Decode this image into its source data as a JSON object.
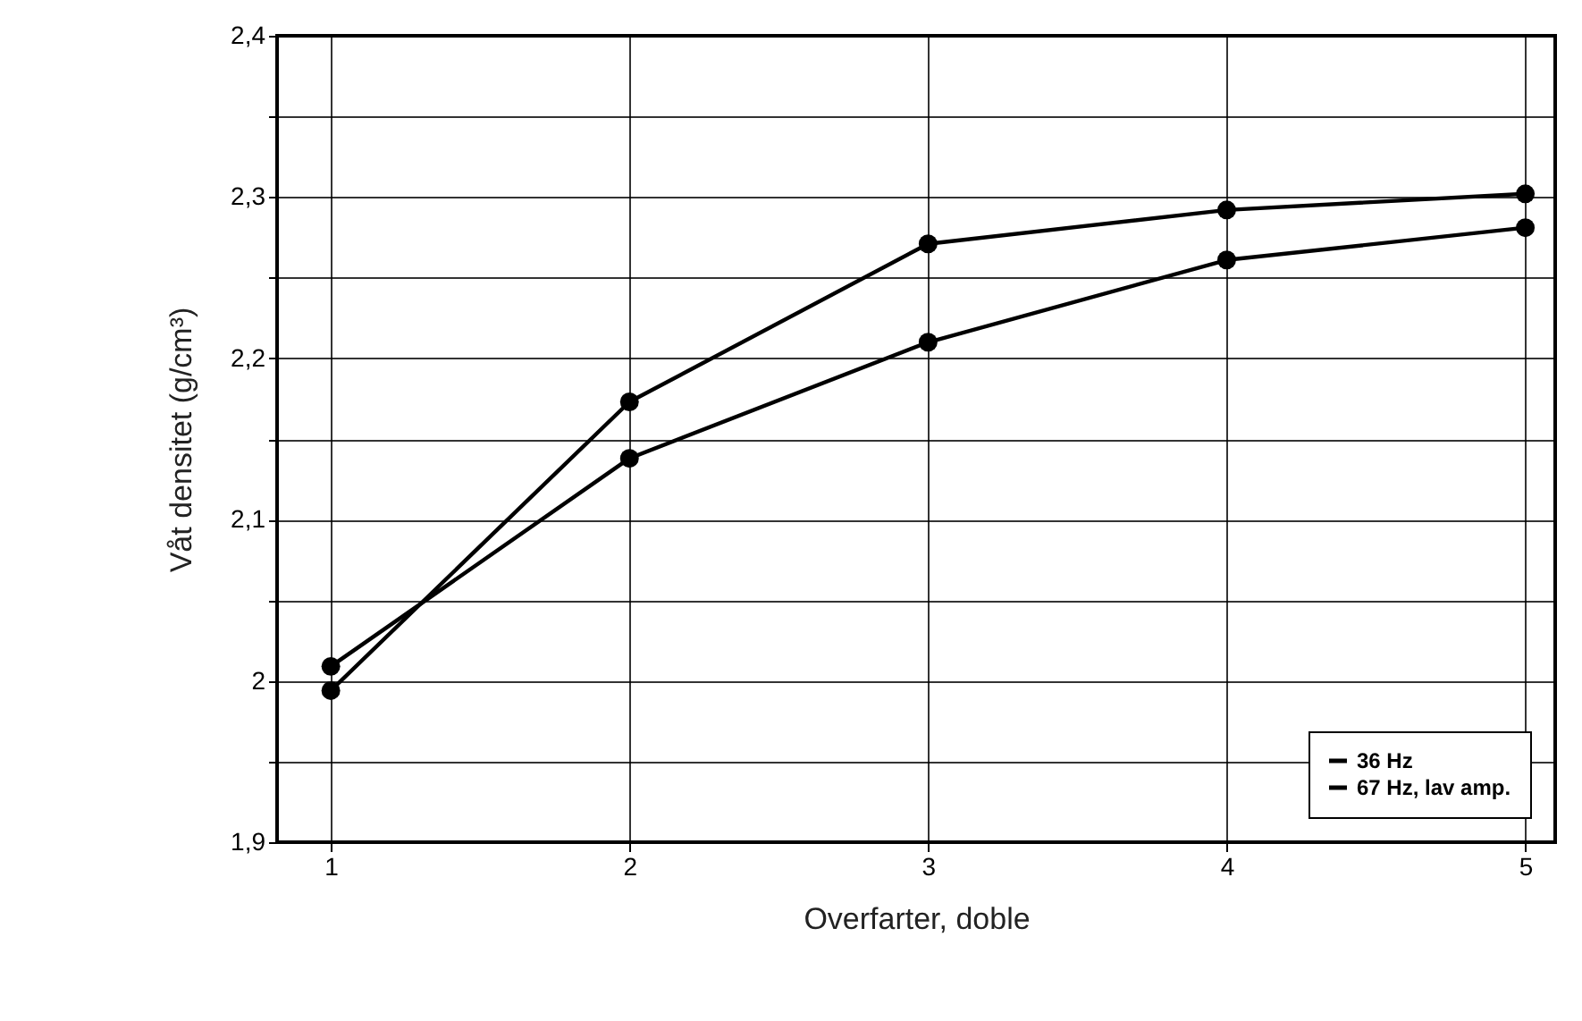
{
  "chart_data": {
    "type": "line",
    "xlabel": "Overfarter, doble",
    "ylabel": "Våt densitet (g/cm³)",
    "x": [
      1,
      2,
      3,
      4,
      5
    ],
    "series": [
      {
        "name": "36 Hz",
        "color": "#000000",
        "values": [
          1.994,
          2.173,
          2.271,
          2.292,
          2.302
        ]
      },
      {
        "name": "67 Hz, lav amp.",
        "color": "#000000",
        "values": [
          2.009,
          2.138,
          2.21,
          2.261,
          2.281
        ]
      }
    ],
    "xlim": [
      0.82,
      5.1
    ],
    "xticks": [
      1,
      2,
      3,
      4,
      5
    ],
    "ylim": [
      1.9,
      2.4
    ],
    "yticks": [
      {
        "value": 1.9,
        "label": "1,9"
      },
      {
        "value": 1.95,
        "label": null
      },
      2,
      {
        "value": 2.05,
        "label": null
      },
      {
        "value": 2.1,
        "label": "2,1"
      },
      {
        "value": 2.15,
        "label": null
      },
      {
        "value": 2.2,
        "label": "2,2"
      },
      {
        "value": 2.25,
        "label": null
      },
      {
        "value": 2.3,
        "label": "2,3"
      },
      {
        "value": 2.35,
        "label": null
      },
      {
        "value": 2.4,
        "label": "2,4"
      }
    ],
    "grid": true,
    "legend": "bottom right",
    "marker": "circle",
    "line_style": "solid"
  }
}
